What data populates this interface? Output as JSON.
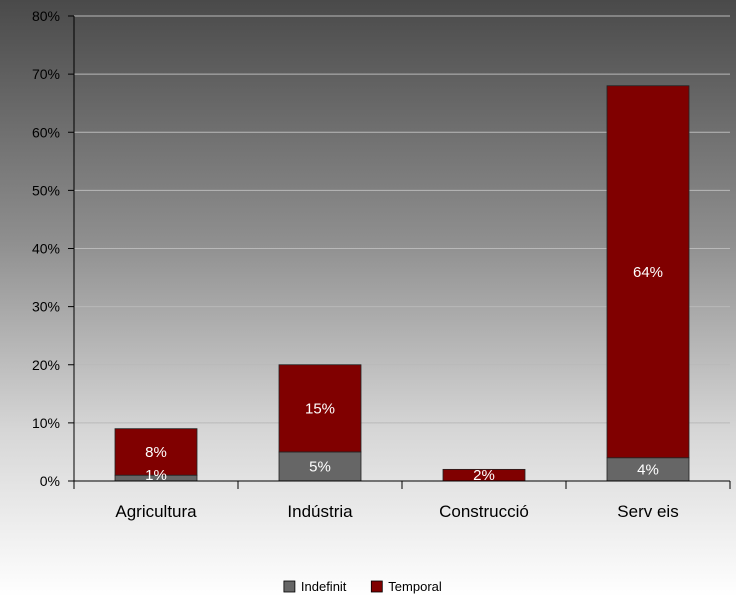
{
  "chart_data": {
    "type": "bar",
    "stacked": true,
    "categories": [
      "Agricultura",
      "Indústria",
      "Construcció",
      "Serv eis"
    ],
    "series": [
      {
        "name": "Indefinit",
        "values": [
          1,
          5,
          0,
          4
        ],
        "color": "#666666",
        "labels": [
          "1%",
          "5%",
          "",
          "4%"
        ]
      },
      {
        "name": "Temporal",
        "values": [
          8,
          15,
          2,
          64
        ],
        "color": "#800000",
        "labels": [
          "8%",
          "15%",
          "2%",
          "64%"
        ]
      }
    ],
    "yticks": [
      "0%",
      "10%",
      "20%",
      "30%",
      "40%",
      "50%",
      "60%",
      "70%",
      "80%"
    ],
    "ylim": [
      0,
      80
    ],
    "grid": true,
    "legend": "bottom"
  }
}
